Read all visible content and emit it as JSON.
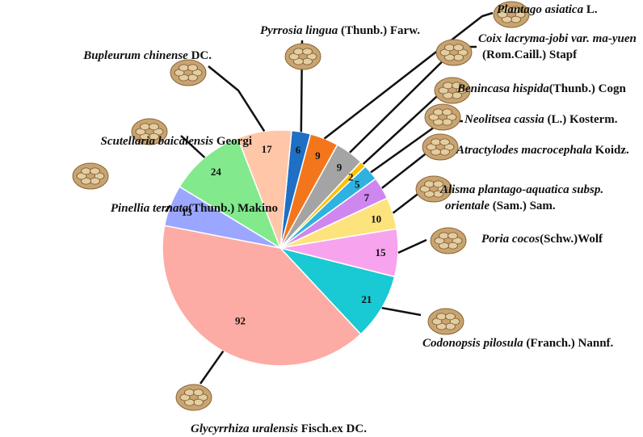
{
  "chart_data": {
    "type": "pie",
    "slices": [
      {
        "italic": "Pyrrosia lingua",
        "rest": " (Thunb.) Farw.",
        "value": 6,
        "color": "#1f6fc5",
        "icon": "herb-slices-photo"
      },
      {
        "italic": "Plantago asiatica",
        "rest": " L.",
        "value": 9,
        "color": "#f4761c",
        "icon": "seeds-photo"
      },
      {
        "italic": "Coix lacryma-jobi var. ma-yuen",
        "rest": "",
        "rest2": "(Rom.Caill.) Stapf",
        "value": 9,
        "color": "#a4a4a4",
        "icon": "grain-photo"
      },
      {
        "italic": "Benincasa hispida",
        "rest": "(Thunb.) Cogn",
        "value": 2,
        "color": "#ffc000",
        "icon": "seed-pile-photo"
      },
      {
        "italic": "Neolitsea cassia",
        "rest": " (L.) Kosterm.",
        "value": 5,
        "color": "#2fb2e0",
        "icon": "bark-pieces-photo"
      },
      {
        "italic": "Atractylodes macrocephala",
        "rest": " Koidz.",
        "value": 7,
        "color": "#cf86ef",
        "icon": "root-slices-photo"
      },
      {
        "italic": "Alisma plantago-aquatica subsp.",
        "rest": "",
        "italic2": "orientale",
        "rest2": " (Sam.) Sam.",
        "value": 10,
        "color": "#fde37c",
        "icon": "tuber-slices-photo"
      },
      {
        "italic": "Poria cocos",
        "rest": "(Schw.)Wolf",
        "value": 15,
        "color": "#f7a3ee",
        "icon": "cubes-photo"
      },
      {
        "italic": "Codonopsis pilosula",
        "rest": " (Franch.) Nannf.",
        "value": 21,
        "color": "#19c9d3",
        "icon": "root-sticks-photo"
      },
      {
        "italic": "Glycyrrhiza uralensis",
        "rest": " Fisch.ex DC.",
        "value": 92,
        "color": "#fcaca4",
        "icon": "licorice-slices-photo"
      },
      {
        "italic": "Pinellia ternata",
        "rest": "(Thunb.) Makino",
        "value": 13,
        "color": "#9aa6ff",
        "icon": "tuber-pile-photo"
      },
      {
        "italic": "Scutellaria baicalensis",
        "rest": " Georgi",
        "value": 24,
        "color": "#82ea8d",
        "icon": "root-slices-photo"
      },
      {
        "italic": "Bupleurum chinense",
        "rest": " DC.",
        "value": 17,
        "color": "#ffc6a8",
        "icon": "root-pieces-photo"
      }
    ]
  }
}
